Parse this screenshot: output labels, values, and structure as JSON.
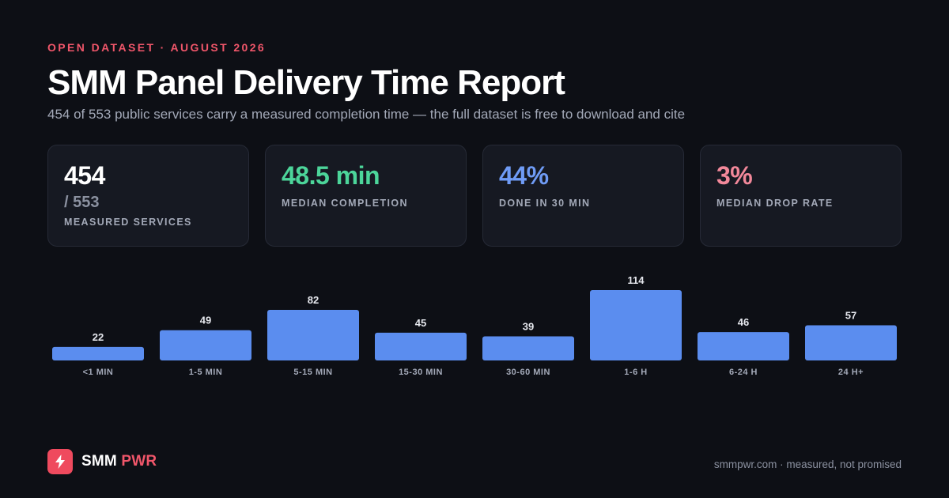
{
  "header": {
    "eyebrow": "OPEN DATASET · AUGUST 2026",
    "title": "SMM Panel Delivery Time Report",
    "subtitle": "454 of 553 public services carry a measured completion time — the full dataset is free to download and cite"
  },
  "stats": [
    {
      "value": "454",
      "sub": "/ 553",
      "label": "MEASURED SERVICES",
      "color": "#ffffff"
    },
    {
      "value": "48.5 min",
      "label": "MEDIAN COMPLETION",
      "color": "#4cd59a"
    },
    {
      "value": "44%",
      "label": "DONE IN 30 MIN",
      "color": "#6f9bf5"
    },
    {
      "value": "3%",
      "label": "MEDIAN DROP RATE",
      "color": "#f2889a"
    }
  ],
  "chart_data": {
    "type": "bar",
    "categories": [
      "<1 MIN",
      "1-5 MIN",
      "5-15 MIN",
      "15-30 MIN",
      "30-60 MIN",
      "1-6 H",
      "6-24 H",
      "24 H+"
    ],
    "values": [
      22,
      49,
      82,
      45,
      39,
      114,
      46,
      57
    ],
    "title": "",
    "xlabel": "",
    "ylabel": "",
    "ylim": [
      0,
      114
    ],
    "grid": false,
    "bar_color": "#5b8def",
    "label_color": "#e6e8ee",
    "tick_color": "#a3a9b8"
  },
  "footer": {
    "brand_primary": "SMM",
    "brand_accent": "PWR",
    "tagline": "smmpwr.com · measured, not promised",
    "logo_icon": "lightning-bolt-icon"
  }
}
